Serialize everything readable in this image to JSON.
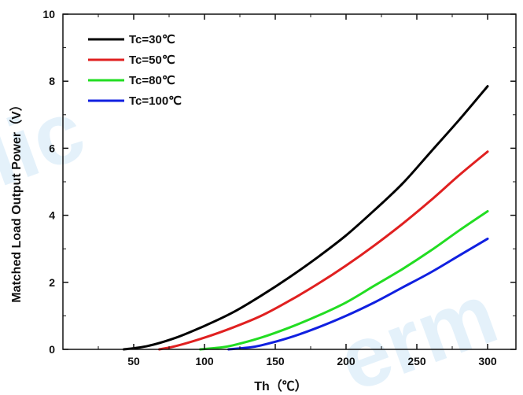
{
  "chart_data": {
    "type": "line",
    "xlabel": "Th（℃）",
    "ylabel": "Matched Load Output Power（V）",
    "xlim": [
      0,
      320
    ],
    "ylim": [
      0,
      10
    ],
    "x_ticks": [
      50,
      100,
      150,
      200,
      250,
      300
    ],
    "y_ticks": [
      0,
      2,
      4,
      6,
      8,
      10
    ],
    "grid": false,
    "legend_position": "top-left",
    "series": [
      {
        "name": "Tc=30℃",
        "color": "#000000",
        "x": [
          43,
          60,
          80,
          100,
          120,
          140,
          160,
          180,
          200,
          220,
          240,
          260,
          280,
          300
        ],
        "y": [
          0,
          0.1,
          0.35,
          0.7,
          1.1,
          1.6,
          2.15,
          2.75,
          3.4,
          4.15,
          4.95,
          5.9,
          6.85,
          7.85
        ]
      },
      {
        "name": "Tc=50℃",
        "color": "#e02020",
        "x": [
          68,
          80,
          100,
          120,
          140,
          160,
          180,
          200,
          220,
          240,
          260,
          280,
          300
        ],
        "y": [
          0,
          0.1,
          0.35,
          0.65,
          1.0,
          1.45,
          1.95,
          2.5,
          3.1,
          3.75,
          4.45,
          5.2,
          5.9
        ]
      },
      {
        "name": "Tc=80℃",
        "color": "#22dd22",
        "x": [
          97,
          110,
          120,
          140,
          160,
          180,
          200,
          220,
          240,
          260,
          280,
          300
        ],
        "y": [
          0,
          0.05,
          0.12,
          0.35,
          0.65,
          1.0,
          1.4,
          1.9,
          2.4,
          2.95,
          3.55,
          4.12
        ]
      },
      {
        "name": "Tc=100℃",
        "color": "#1020e0",
        "x": [
          117,
          130,
          140,
          160,
          180,
          200,
          220,
          240,
          260,
          280,
          300
        ],
        "y": [
          0,
          0.05,
          0.12,
          0.35,
          0.65,
          1.0,
          1.4,
          1.85,
          2.3,
          2.8,
          3.3
        ]
      }
    ]
  }
}
